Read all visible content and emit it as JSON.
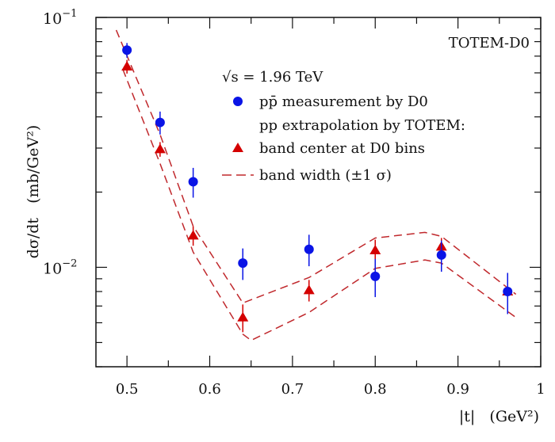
{
  "chart_data": {
    "type": "scatter",
    "title": "",
    "xlabel": "|t|   (GeV²)",
    "ylabel": "dσ/dt   (mb/GeV²)",
    "xlim": [
      0.4625,
      1.0
    ],
    "ylim": [
      0.004,
      0.1
    ],
    "yscale": "log",
    "grid": false,
    "x_ticks": [
      0.5,
      0.6,
      0.7,
      0.8,
      0.9,
      1.0
    ],
    "x_tick_labels": [
      "0.5",
      "0.6",
      "0.7",
      "0.8",
      "0.9",
      "1"
    ],
    "y_tick_labels": [
      {
        "value": 0.1,
        "base": "10",
        "exp": "−1"
      },
      {
        "value": 0.01,
        "base": "10",
        "exp": "−2"
      }
    ],
    "annotation": "TOTEM-D0",
    "legend": {
      "placement": "top-right",
      "header": "√s = 1.96 TeV",
      "subheader": "pp extrapolation by TOTEM:",
      "entries": [
        "pp̄ measurement by D0",
        "band center at D0 bins",
        "band width (±1 σ)"
      ]
    },
    "series": [
      {
        "name": "pp̄ measurement by D0",
        "marker": "circle",
        "color": "#0a14e6",
        "x": [
          0.5,
          0.54,
          0.58,
          0.64,
          0.72,
          0.8,
          0.88,
          0.96
        ],
        "y": [
          0.074,
          0.038,
          0.022,
          0.0104,
          0.0118,
          0.0092,
          0.0112,
          0.008
        ],
        "err": [
          0.005,
          0.004,
          0.003,
          0.0015,
          0.0017,
          0.0016,
          0.0016,
          0.0015
        ]
      },
      {
        "name": "band center at D0 bins",
        "marker": "triangle",
        "color": "#d40000",
        "x": [
          0.5,
          0.54,
          0.58,
          0.64,
          0.72,
          0.8,
          0.88,
          0.96
        ],
        "y": [
          0.0636,
          0.0297,
          0.0134,
          0.0063,
          0.0081,
          0.0117,
          0.0121,
          0.008
        ],
        "err": [
          0.004,
          0.002,
          0.0012,
          0.0008,
          0.0008,
          0.0012,
          0.001,
          0.0006
        ]
      },
      {
        "name": "band width (±1 σ)",
        "marker": "dashed",
        "color": "#c0282c",
        "upper": {
          "x": [
            0.487,
            0.54,
            0.58,
            0.64,
            0.72,
            0.8,
            0.86,
            0.88,
            0.97
          ],
          "y": [
            0.089,
            0.034,
            0.0146,
            0.0072,
            0.0091,
            0.0131,
            0.0138,
            0.0133,
            0.0078
          ]
        },
        "lower": {
          "x": [
            0.495,
            0.54,
            0.58,
            0.64,
            0.65,
            0.72,
            0.8,
            0.86,
            0.88,
            0.97
          ],
          "y": [
            0.062,
            0.026,
            0.0115,
            0.0054,
            0.0051,
            0.0066,
            0.0099,
            0.0107,
            0.0104,
            0.0063
          ]
        }
      }
    ]
  }
}
